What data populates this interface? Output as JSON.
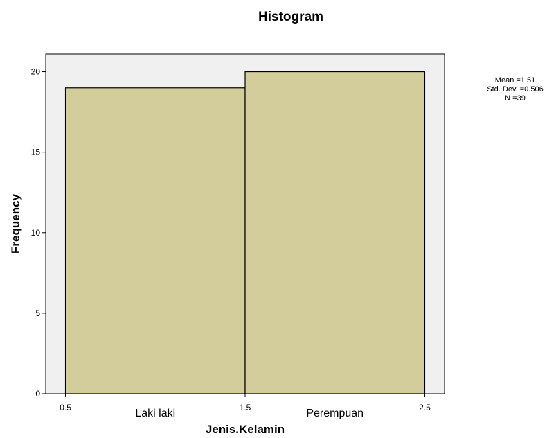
{
  "chart_data": {
    "type": "bar",
    "title": "Histogram",
    "xlabel": "Jenis.Kelamin",
    "ylabel": "Frequency",
    "bins": [
      {
        "from": 0.5,
        "to": 1.5,
        "value": 19
      },
      {
        "from": 1.5,
        "to": 2.5,
        "value": 20
      }
    ],
    "xticks": [
      "0.5",
      "1.5",
      "2.5"
    ],
    "xtick_values": [
      0.5,
      1.5,
      2.5
    ],
    "yticks": [
      "0",
      "5",
      "10",
      "15",
      "20"
    ],
    "ytick_values": [
      0,
      5,
      10,
      15,
      20
    ],
    "category_labels": [
      {
        "text": "Laki laki",
        "x": 1.0
      },
      {
        "text": "Perempuan",
        "x": 2.0
      }
    ],
    "xlim": [
      0.39,
      2.61
    ],
    "ylim": [
      0,
      21.1
    ],
    "stats": [
      "Mean =1.51",
      "Std. Dev. =0.506",
      "N =39"
    ],
    "colors": {
      "bar_fill": "#d3cd9b",
      "plot_background": "#f0f0f0",
      "outline": "#000000"
    }
  }
}
